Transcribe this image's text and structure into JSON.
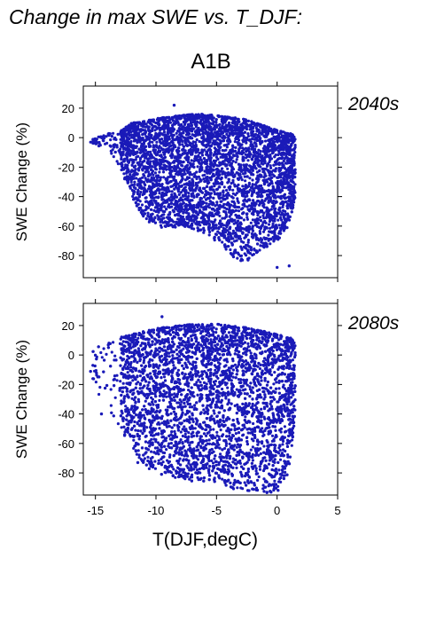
{
  "figure": {
    "title": "Change in max SWE vs. T_DJF:",
    "scenario": "A1B"
  },
  "colors": {
    "point": "#1a1ab8",
    "label": "#2626a6",
    "frame": "#000000"
  },
  "chart_data": [
    {
      "type": "scatter",
      "panel_label": "2040s",
      "xlabel": "T(DJF,degC)",
      "ylabel": "SWE Change (%)",
      "xlim": [
        -16,
        5
      ],
      "ylim": [
        -95,
        35
      ],
      "xticks": [
        -15,
        -10,
        -5,
        0,
        5
      ],
      "yticks": [
        20,
        0,
        -20,
        -40,
        -60,
        -80
      ],
      "grid": false,
      "envelope": {
        "x": [
          -15.5,
          -14,
          -13,
          -12,
          -11,
          -10,
          -9,
          -8,
          -7,
          -6,
          -5,
          -4,
          -3,
          -2,
          -1,
          0,
          1,
          1.5
        ],
        "upper": [
          -2,
          3,
          4,
          10,
          11,
          13,
          14,
          15,
          16,
          16,
          15,
          14,
          13,
          11,
          8,
          5,
          3,
          2
        ],
        "lower": [
          -3,
          -8,
          -20,
          -40,
          -55,
          -60,
          -62,
          -60,
          -62,
          -65,
          -72,
          -78,
          -85,
          -82,
          -75,
          -70,
          -60,
          -40
        ]
      },
      "notable_points": [
        {
          "x": -8.5,
          "y": 22
        },
        {
          "x": 0,
          "y": -88
        },
        {
          "x": 1,
          "y": -87
        },
        {
          "x": -2.4,
          "y": -83
        }
      ]
    },
    {
      "type": "scatter",
      "panel_label": "2080s",
      "xlabel": "T(DJF,degC)",
      "ylabel": "SWE Change (%)",
      "xlim": [
        -16,
        5
      ],
      "ylim": [
        -95,
        35
      ],
      "xticks": [
        -15,
        -10,
        -5,
        0,
        5
      ],
      "yticks": [
        20,
        0,
        -20,
        -40,
        -60,
        -80
      ],
      "grid": false,
      "envelope": {
        "x": [
          -15.5,
          -14,
          -13,
          -12,
          -11,
          -10,
          -9,
          -8,
          -7,
          -6,
          -5,
          -4,
          -3,
          -2,
          -1,
          0,
          1,
          1.5
        ],
        "upper": [
          2,
          9,
          12,
          14,
          16,
          18,
          19,
          20,
          21,
          21,
          21,
          20,
          19,
          18,
          16,
          14,
          12,
          10
        ],
        "lower": [
          -12,
          -40,
          -50,
          -62,
          -75,
          -80,
          -82,
          -84,
          -86,
          -86,
          -88,
          -90,
          -92,
          -94,
          -94,
          -93,
          -80,
          -40
        ]
      },
      "notable_points": [
        {
          "x": -9.5,
          "y": 26
        },
        {
          "x": -14.5,
          "y": -40
        },
        {
          "x": -0.5,
          "y": -93
        },
        {
          "x": -11.5,
          "y": -73
        }
      ]
    }
  ]
}
